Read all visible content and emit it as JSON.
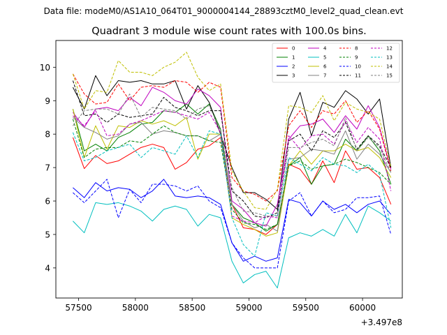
{
  "chart_data": {
    "type": "line",
    "suptitle": "Data file: modeM0/AS1A10_064T01_9000004144_28893cztM0_level2_quad_clean.evt",
    "title": "Quadrant 3 module wise count rates with 100.0s bins.",
    "xlabel": "",
    "ylabel": "",
    "x_offset_label": "+3.497e8",
    "xlim": [
      57300,
      60350
    ],
    "ylim": [
      3.1,
      10.8
    ],
    "x_ticks": [
      57500,
      58000,
      58500,
      59000,
      59500,
      60000
    ],
    "x_tick_labels": [
      "57500",
      "58000",
      "58500",
      "59000",
      "59500",
      "60000"
    ],
    "y_ticks": [
      4,
      5,
      6,
      7,
      8,
      9,
      10
    ],
    "y_tick_labels": [
      "4",
      "5",
      "6",
      "7",
      "8",
      "9",
      "10"
    ],
    "x": [
      57450,
      57550,
      57650,
      57750,
      57850,
      57950,
      58050,
      58150,
      58250,
      58350,
      58450,
      58550,
      58650,
      58750,
      58850,
      58950,
      59050,
      59150,
      59250,
      59350,
      59450,
      59550,
      59650,
      59750,
      59850,
      59950,
      60050,
      60150,
      60250
    ],
    "series": [
      {
        "name": "0",
        "color": "#ff0000",
        "dash": "solid",
        "values": [
          7.9,
          6.97,
          7.36,
          7.12,
          7.2,
          7.4,
          7.6,
          7.7,
          7.6,
          6.95,
          7.15,
          7.55,
          7.65,
          7.9,
          5.9,
          5.2,
          5.15,
          5.0,
          5.3,
          7.1,
          6.95,
          6.5,
          7.2,
          6.55,
          7.5,
          6.95,
          7.0,
          6.7,
          5.9
        ]
      },
      {
        "name": "1",
        "color": "#008000",
        "dash": "solid",
        "values": [
          8.75,
          7.5,
          7.7,
          7.5,
          7.9,
          8.05,
          8.3,
          8.35,
          8.7,
          8.65,
          8.9,
          8.6,
          8.9,
          8.15,
          5.9,
          5.5,
          5.35,
          5.1,
          5.3,
          7.05,
          7.3,
          6.5,
          7.05,
          7.1,
          7.85,
          7.5,
          7.95,
          7.5,
          6.5
        ]
      },
      {
        "name": "2",
        "color": "#0000ff",
        "dash": "solid",
        "values": [
          6.4,
          6.1,
          6.55,
          6.3,
          6.4,
          6.35,
          6.1,
          6.3,
          6.65,
          6.15,
          6.1,
          6.15,
          6.1,
          5.9,
          4.75,
          4.2,
          4.35,
          4.2,
          4.3,
          6.05,
          5.95,
          5.55,
          6.0,
          5.75,
          5.9,
          5.65,
          5.9,
          6.0,
          5.6
        ]
      },
      {
        "name": "3",
        "color": "#000000",
        "dash": "solid",
        "values": [
          9.4,
          8.75,
          9.75,
          9.15,
          9.6,
          9.55,
          9.6,
          9.5,
          9.5,
          9.6,
          8.75,
          9.45,
          8.95,
          8.0,
          7.0,
          6.25,
          6.25,
          6.05,
          5.75,
          8.45,
          9.25,
          7.95,
          8.95,
          8.8,
          9.3,
          9.05,
          8.6,
          9.05,
          7.0
        ]
      },
      {
        "name": "4",
        "color": "#bf00bf",
        "dash": "solid",
        "values": [
          8.65,
          8.2,
          8.75,
          8.8,
          8.7,
          9.1,
          8.85,
          9.4,
          9.25,
          9.0,
          8.9,
          9.35,
          9.15,
          8.8,
          6.0,
          5.75,
          5.35,
          5.25,
          5.9,
          7.85,
          8.25,
          8.3,
          8.45,
          8.05,
          8.55,
          8.15,
          8.85,
          8.2,
          6.95
        ]
      },
      {
        "name": "5",
        "color": "#00bfbf",
        "dash": "solid",
        "values": [
          5.4,
          5.05,
          5.95,
          5.9,
          5.95,
          5.85,
          5.7,
          5.4,
          5.75,
          5.85,
          5.75,
          5.25,
          5.6,
          5.5,
          4.2,
          3.55,
          3.8,
          3.9,
          3.4,
          4.9,
          5.05,
          4.95,
          5.15,
          4.95,
          5.6,
          5.05,
          5.85,
          5.65,
          5.4
        ]
      },
      {
        "name": "6",
        "color": "#bfbf00",
        "dash": "solid",
        "values": [
          8.75,
          7.3,
          8.25,
          7.55,
          8.25,
          8.2,
          8.4,
          8.3,
          8.4,
          8.25,
          8.5,
          7.25,
          8.0,
          8.0,
          5.5,
          5.3,
          5.15,
          4.95,
          5.05,
          7.05,
          7.5,
          7.1,
          7.5,
          7.5,
          7.7,
          7.5,
          7.6,
          7.3,
          6.7
        ]
      },
      {
        "name": "7",
        "color": "#808080",
        "dash": "solid",
        "values": [
          8.5,
          8.2,
          8.05,
          7.85,
          7.95,
          8.3,
          8.35,
          8.0,
          8.1,
          8.05,
          7.95,
          7.95,
          7.8,
          8.0,
          5.9,
          5.4,
          5.2,
          5.3,
          5.1,
          7.25,
          7.3,
          7.55,
          7.5,
          7.4,
          8.1,
          7.25,
          7.7,
          7.4,
          6.85
        ]
      },
      {
        "name": "8",
        "color": "#ff0000",
        "dash": "dashed",
        "values": [
          9.8,
          9.2,
          8.9,
          8.95,
          9.5,
          9.0,
          9.4,
          9.45,
          9.4,
          9.6,
          9.55,
          9.25,
          9.55,
          9.4,
          6.7,
          6.3,
          6.2,
          6.0,
          6.3,
          8.25,
          8.7,
          8.2,
          8.7,
          8.6,
          9.0,
          8.35,
          8.7,
          8.15,
          6.9
        ]
      },
      {
        "name": "9",
        "color": "#008000",
        "dash": "dashed",
        "values": [
          8.45,
          7.3,
          7.55,
          7.6,
          7.6,
          7.8,
          7.75,
          8.0,
          8.25,
          8.05,
          7.95,
          7.95,
          7.8,
          7.75,
          5.75,
          5.35,
          5.3,
          5.15,
          5.3,
          7.05,
          7.2,
          6.95,
          7.05,
          7.1,
          7.25,
          7.15,
          7.0,
          6.85,
          6.5
        ]
      },
      {
        "name": "10",
        "color": "#0000ff",
        "dash": "dashed",
        "values": [
          6.25,
          5.95,
          6.3,
          6.65,
          5.5,
          6.35,
          5.95,
          6.5,
          6.5,
          6.45,
          6.3,
          6.45,
          6.0,
          5.8,
          4.75,
          4.3,
          4.0,
          4.0,
          4.0,
          6.0,
          6.25,
          5.55,
          6.0,
          5.65,
          5.75,
          6.1,
          6.1,
          6.15,
          5.0
        ]
      },
      {
        "name": "11",
        "color": "#000000",
        "dash": "dashed",
        "values": [
          9.6,
          8.55,
          8.6,
          8.35,
          8.6,
          8.5,
          8.55,
          8.6,
          9.1,
          8.8,
          8.7,
          8.55,
          8.7,
          8.7,
          6.3,
          6.0,
          5.55,
          5.5,
          5.65,
          7.8,
          8.0,
          7.5,
          8.1,
          7.9,
          8.35,
          7.55,
          7.95,
          7.65,
          7.0
        ]
      },
      {
        "name": "12",
        "color": "#bf00bf",
        "dash": "dashed",
        "values": [
          8.55,
          8.25,
          8.7,
          7.95,
          8.0,
          8.3,
          8.4,
          8.55,
          8.7,
          8.65,
          8.55,
          8.45,
          8.65,
          8.05,
          5.55,
          5.4,
          5.35,
          5.55,
          5.5,
          7.95,
          7.55,
          7.95,
          8.0,
          7.7,
          8.4,
          7.75,
          8.2,
          7.85,
          6.3
        ]
      },
      {
        "name": "13",
        "color": "#00bfbf",
        "dash": "dashed",
        "values": [
          8.05,
          7.2,
          7.3,
          7.5,
          7.6,
          7.7,
          7.3,
          7.6,
          7.5,
          7.4,
          7.95,
          7.3,
          8.1,
          8.0,
          5.5,
          4.7,
          4.35,
          5.65,
          5.55,
          7.3,
          7.1,
          6.9,
          7.3,
          7.1,
          7.05,
          6.85,
          7.1,
          6.8,
          5.2
        ]
      },
      {
        "name": "14",
        "color": "#bfbf00",
        "dash": "dashed",
        "values": [
          9.8,
          8.75,
          9.3,
          9.25,
          10.2,
          9.85,
          9.85,
          9.75,
          10.0,
          10.15,
          10.45,
          9.7,
          9.3,
          9.5,
          6.9,
          6.3,
          5.8,
          5.75,
          6.35,
          8.85,
          8.8,
          8.65,
          9.15,
          8.4,
          8.95,
          8.75,
          8.65,
          8.45,
          7.0
        ]
      },
      {
        "name": "15",
        "color": "#808080",
        "dash": "dashed",
        "values": [
          8.25,
          8.7,
          8.75,
          8.75,
          8.6,
          9.2,
          8.5,
          8.8,
          8.75,
          8.7,
          8.45,
          8.75,
          8.85,
          8.1,
          6.4,
          5.7,
          5.65,
          5.55,
          5.55,
          7.6,
          7.6,
          7.75,
          7.85,
          7.65,
          8.5,
          7.5,
          7.9,
          7.6,
          6.85
        ]
      }
    ],
    "legend": {
      "placement": "top-right",
      "columns": 4
    },
    "grid": false
  }
}
